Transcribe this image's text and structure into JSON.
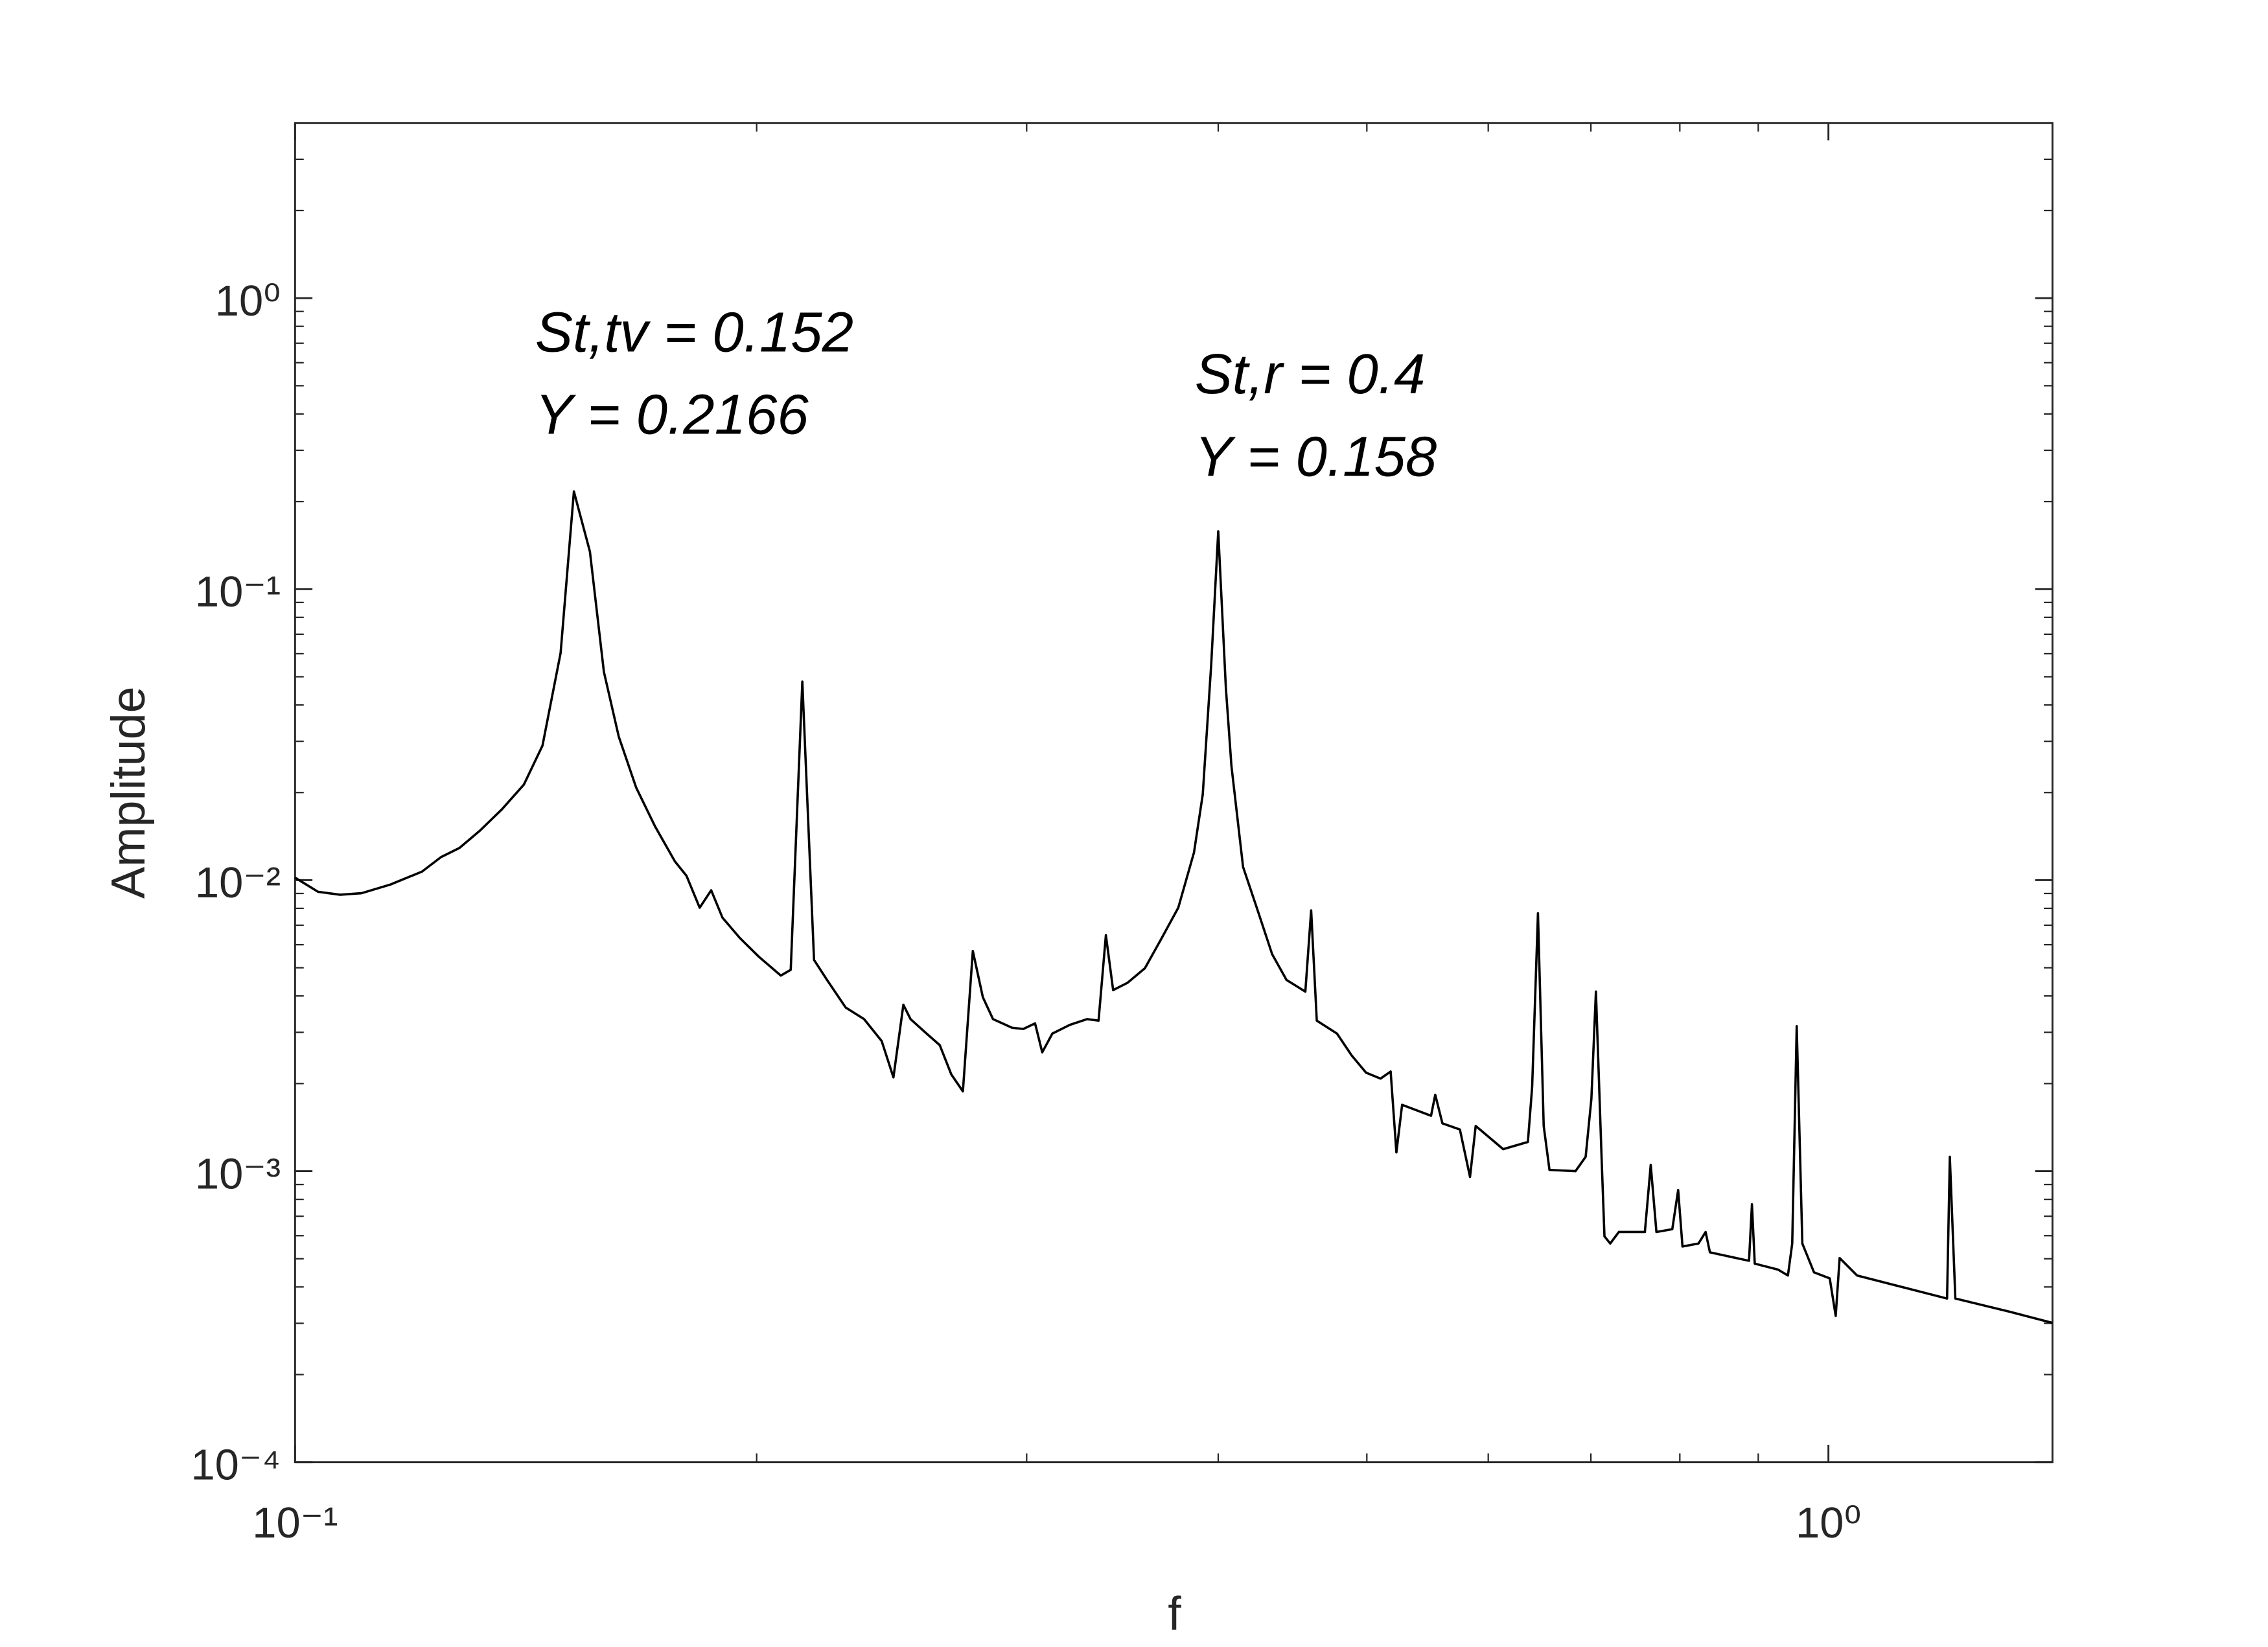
{
  "chart_data": {
    "type": "line",
    "x_label": "f",
    "y_label": "Amplitude",
    "xscale": "log",
    "yscale": "log",
    "grid": false,
    "color": "#000000",
    "xlim": [
      0.1,
      1.4
    ],
    "ylim": [
      0.0001,
      4
    ],
    "xticks": [
      {
        "value": 0.1,
        "label": "10⁻¹"
      },
      {
        "value": 1,
        "label": "10⁰"
      }
    ],
    "yticks": [
      {
        "value": 0.0001,
        "label": "10⁻⁴"
      },
      {
        "value": 0.001,
        "label": "10⁻³"
      },
      {
        "value": 0.01,
        "label": "10⁻²"
      },
      {
        "value": 0.1,
        "label": "10⁻¹"
      },
      {
        "value": 1,
        "label": "10⁰"
      }
    ],
    "annotations": [
      [
        "St,tv = 0.152",
        "Y = 0.2166"
      ],
      [
        "St,r = 0.4",
        "Y = 0.158"
      ]
    ],
    "x": [
      0.1,
      0.1035,
      0.107,
      0.1105,
      0.1154,
      0.121,
      0.1245,
      0.128,
      0.132,
      0.1364,
      0.141,
      0.145,
      0.149,
      0.152,
      0.1557,
      0.159,
      0.1626,
      0.1669,
      0.1717,
      0.1769,
      0.18,
      0.1836,
      0.1868,
      0.19,
      0.195,
      0.2007,
      0.2074,
      0.2105,
      0.2142,
      0.218,
      0.2223,
      0.2286,
      0.235,
      0.2413,
      0.2456,
      0.2493,
      0.252,
      0.2576,
      0.2633,
      0.2679,
      0.2726,
      0.2767,
      0.2809,
      0.2852,
      0.2935,
      0.2985,
      0.3038,
      0.3071,
      0.3118,
      0.32,
      0.3285,
      0.3342,
      0.3379,
      0.3416,
      0.3491,
      0.3583,
      0.367,
      0.3767,
      0.3857,
      0.3908,
      0.3958,
      0.4,
      0.4046,
      0.408,
      0.4152,
      0.4244,
      0.4337,
      0.4432,
      0.4559,
      0.4599,
      0.4638,
      0.4781,
      0.4887,
      0.4994,
      0.5104,
      0.5182,
      0.5227,
      0.5272,
      0.5506,
      0.5541,
      0.5601,
      0.575,
      0.5838,
      0.5888,
      0.6136,
      0.6368,
      0.6409,
      0.6465,
      0.6521,
      0.6578,
      0.684,
      0.6945,
      0.7005,
      0.7053,
      0.7113,
      0.7144,
      0.7206,
      0.73,
      0.7591,
      0.7658,
      0.7724,
      0.791,
      0.798,
      0.8032,
      0.8227,
      0.8316,
      0.837,
      0.8876,
      0.8915,
      0.8953,
      0.927,
      0.941,
      0.9471,
      0.9535,
      0.9616,
      0.9786,
      1.002,
      1.011,
      1.017,
      1.044,
      1.127,
      1.195,
      1.2,
      1.21,
      1.312,
      1.4
    ],
    "values": [
      0.0102,
      0.00912,
      0.00891,
      0.00902,
      0.00966,
      0.0107,
      0.012,
      0.0129,
      0.0148,
      0.0175,
      0.0213,
      0.029,
      0.0604,
      0.2166,
      0.1346,
      0.052,
      0.0311,
      0.0208,
      0.0153,
      0.0116,
      0.01035,
      0.00804,
      0.00923,
      0.00743,
      0.00633,
      0.00545,
      0.0047,
      0.00492,
      0.0481,
      0.00532,
      0.00454,
      0.00365,
      0.00333,
      0.0028,
      0.0021,
      0.00373,
      0.00333,
      0.003,
      0.00271,
      0.00215,
      0.00188,
      0.00571,
      0.00396,
      0.00333,
      0.00311,
      0.00308,
      0.00322,
      0.00256,
      0.00297,
      0.00318,
      0.00333,
      0.00329,
      0.00647,
      0.00419,
      0.00444,
      0.00498,
      0.00625,
      0.00804,
      0.01245,
      0.0197,
      0.0551,
      0.158,
      0.0459,
      0.0247,
      0.0111,
      0.00787,
      0.00557,
      0.00454,
      0.00414,
      0.00787,
      0.00329,
      0.00297,
      0.0025,
      0.00218,
      0.00208,
      0.0022,
      0.00116,
      0.00169,
      0.00155,
      0.00183,
      0.00146,
      0.00139,
      0.000955,
      0.00143,
      0.00119,
      0.00126,
      0.00195,
      0.00769,
      0.00143,
      0.00101,
      0.001,
      0.00112,
      0.00177,
      0.00414,
      0.00112,
      0.000597,
      0.000564,
      0.000618,
      0.000618,
      0.00105,
      0.000618,
      0.000632,
      0.000861,
      0.000551,
      0.000564,
      0.000618,
      0.000526,
      0.000492,
      0.000769,
      0.000481,
      0.000459,
      0.000438,
      0.000564,
      0.00315,
      0.000564,
      0.000449,
      0.000428,
      0.000318,
      0.000503,
      0.000438,
      0.000395,
      0.000365,
      0.00112,
      0.000365,
      0.000329,
      0.000301
    ]
  }
}
